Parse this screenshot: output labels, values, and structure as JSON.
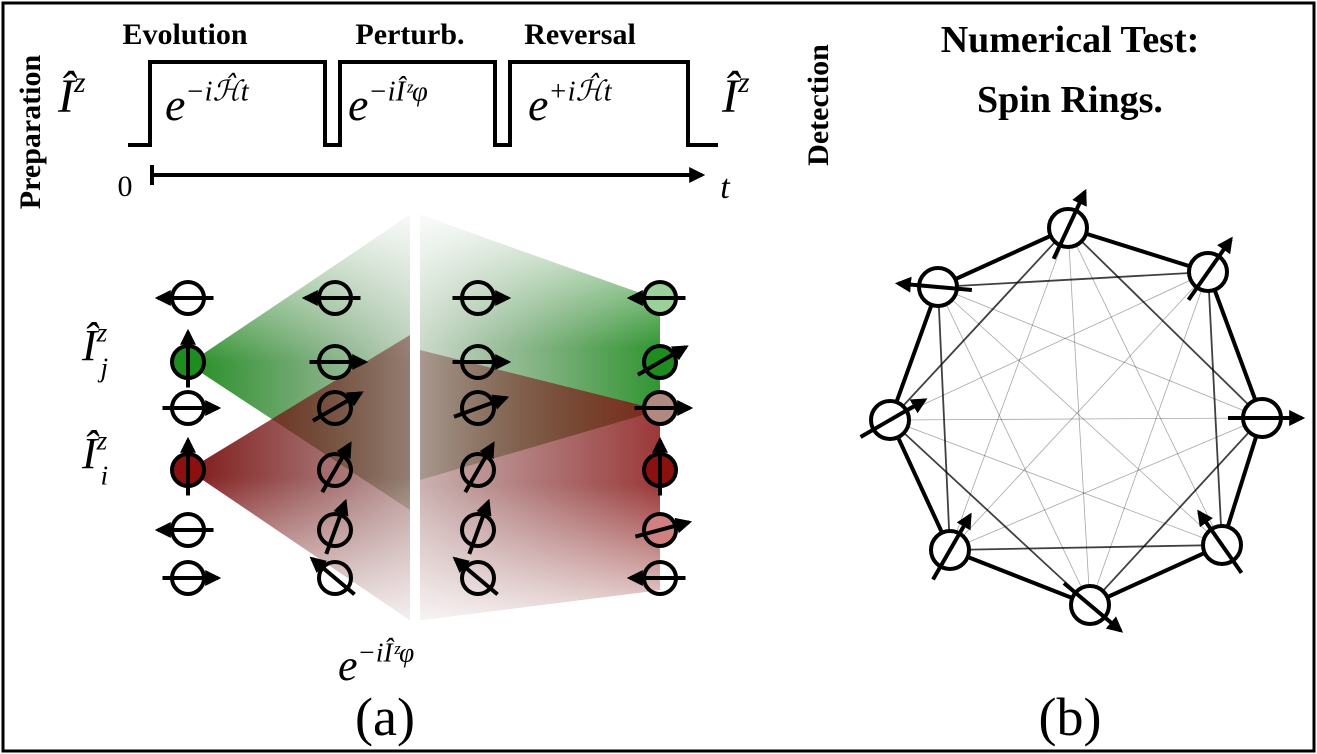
{
  "panel_a": {
    "side_labels": {
      "left": "Preparation",
      "right": "Detection"
    },
    "stage_labels": [
      "Evolution",
      "Perturb.",
      "Reversal"
    ],
    "start_op": {
      "base": "Î",
      "sup": "z"
    },
    "pulse_ops": [
      {
        "base": "e",
        "sup": "−iℋ̂t"
      },
      {
        "base": "e",
        "sup": "−iÎᶻφ"
      },
      {
        "base": "e",
        "sup": "+iℋ̂t"
      }
    ],
    "end_op": {
      "base": "Î",
      "sup": "z"
    },
    "time_axis": {
      "start": "0",
      "end": "t"
    },
    "spin_labels": [
      {
        "base": "Î",
        "sup": "z",
        "sub": "j"
      },
      {
        "base": "Î",
        "sup": "z",
        "sub": "i"
      }
    ],
    "perturb_op": {
      "base": "e",
      "sup": "−iÎᶻφ"
    },
    "caption": "(a)"
  },
  "panel_b": {
    "title": [
      "Numerical Test:",
      "Spin Rings."
    ],
    "caption": "(b)"
  }
}
